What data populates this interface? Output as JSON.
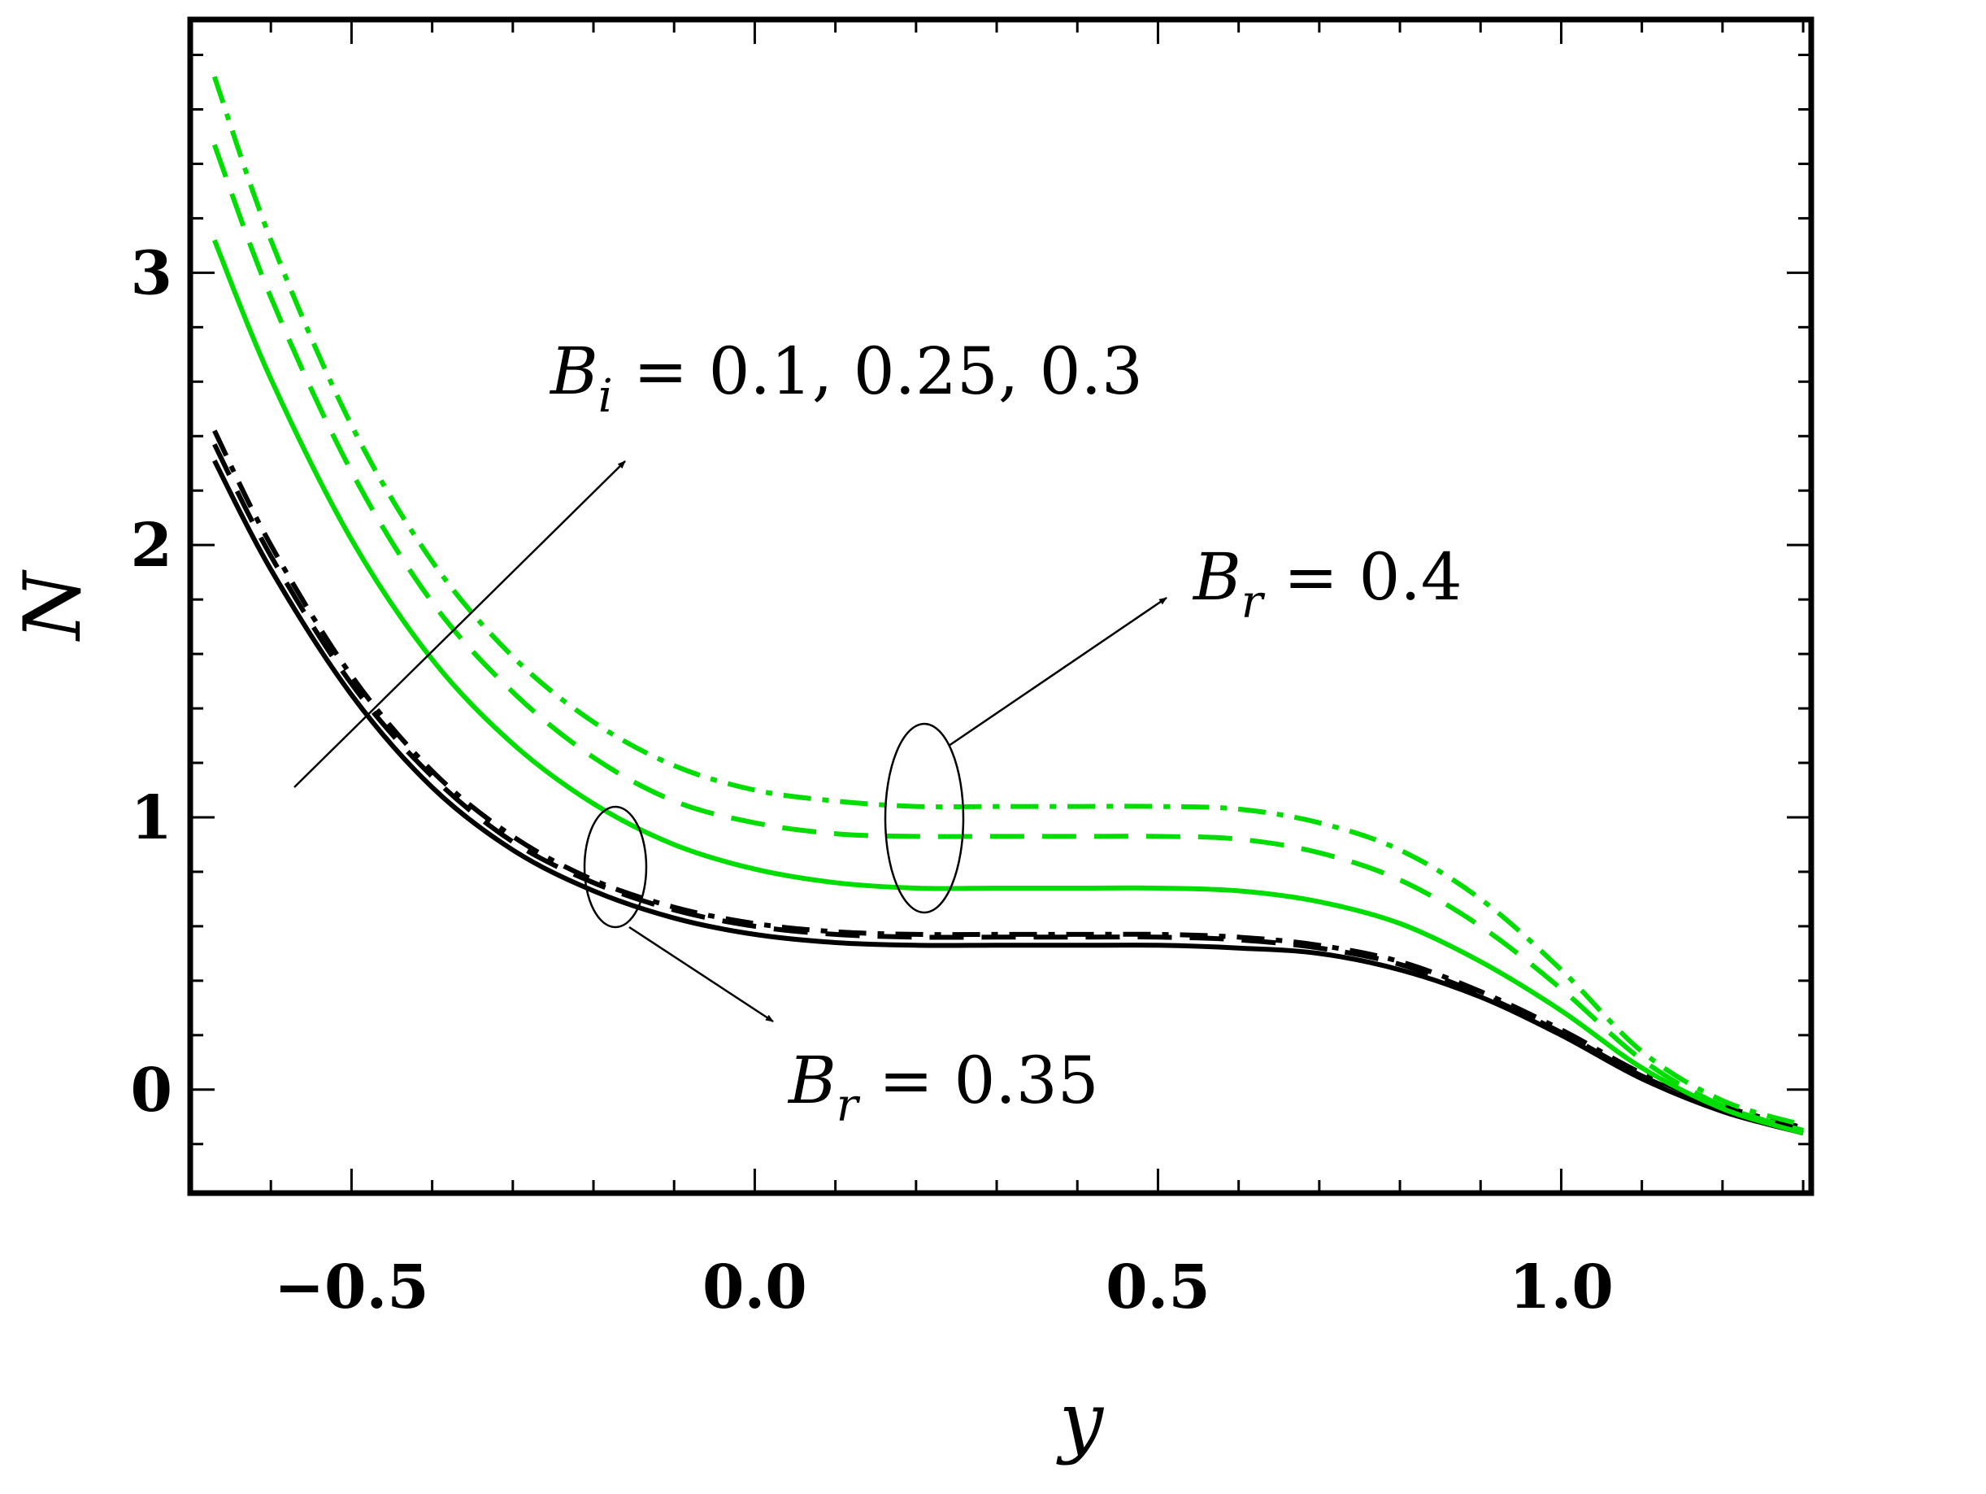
{
  "chart_data": {
    "type": "line",
    "title": "",
    "xlabel": "y",
    "ylabel": "N",
    "xlim": [
      -0.7,
      1.31
    ],
    "ylim": [
      -0.38,
      3.93
    ],
    "xticks": [
      -0.5,
      0.0,
      0.5,
      1.0
    ],
    "xtick_labels": [
      "−0.5",
      "0.0",
      "0.5",
      "1.0"
    ],
    "yticks": [
      0,
      1,
      2,
      3
    ],
    "ytick_labels": [
      "0",
      "1",
      "2",
      "3"
    ],
    "grid": false,
    "x": [
      -0.67,
      -0.6,
      -0.5,
      -0.4,
      -0.3,
      -0.2,
      -0.1,
      0.0,
      0.1,
      0.2,
      0.3,
      0.4,
      0.5,
      0.6,
      0.7,
      0.8,
      0.9,
      1.0,
      1.1,
      1.2,
      1.3
    ],
    "series": [
      {
        "name": "B_r = 0.35, B_i = 0.1",
        "color": "#000000",
        "dash": "solid",
        "values": [
          2.31,
          1.91,
          1.45,
          1.11,
          0.88,
          0.73,
          0.63,
          0.57,
          0.54,
          0.53,
          0.53,
          0.53,
          0.53,
          0.52,
          0.5,
          0.44,
          0.34,
          0.2,
          0.04,
          -0.08,
          -0.16
        ]
      },
      {
        "name": "B_r = 0.35, B_i = 0.25",
        "color": "#000000",
        "dash": "dashed",
        "values": [
          2.37,
          1.96,
          1.49,
          1.15,
          0.91,
          0.76,
          0.66,
          0.6,
          0.57,
          0.56,
          0.56,
          0.56,
          0.56,
          0.55,
          0.52,
          0.46,
          0.35,
          0.21,
          0.05,
          -0.07,
          -0.15
        ]
      },
      {
        "name": "B_r = 0.35, B_i = 0.3",
        "color": "#000000",
        "dash": "dotdash",
        "values": [
          2.42,
          2.0,
          1.52,
          1.17,
          0.93,
          0.77,
          0.67,
          0.61,
          0.58,
          0.57,
          0.57,
          0.57,
          0.57,
          0.56,
          0.53,
          0.47,
          0.36,
          0.22,
          0.06,
          -0.06,
          -0.14
        ]
      },
      {
        "name": "B_r = 0.4, B_i = 0.1",
        "color": "#00dd00",
        "dash": "solid",
        "values": [
          3.12,
          2.61,
          2.02,
          1.58,
          1.27,
          1.05,
          0.9,
          0.81,
          0.76,
          0.74,
          0.74,
          0.74,
          0.74,
          0.73,
          0.69,
          0.61,
          0.47,
          0.29,
          0.08,
          -0.07,
          -0.16
        ]
      },
      {
        "name": "B_r = 0.4, B_i = 0.25",
        "color": "#00dd00",
        "dash": "dashed",
        "values": [
          3.47,
          2.91,
          2.27,
          1.79,
          1.46,
          1.22,
          1.06,
          0.98,
          0.94,
          0.93,
          0.93,
          0.93,
          0.93,
          0.92,
          0.87,
          0.77,
          0.6,
          0.37,
          0.11,
          -0.06,
          -0.15
        ]
      },
      {
        "name": "B_r = 0.4, B_i = 0.3",
        "color": "#00dd00",
        "dash": "dotdash",
        "values": [
          3.72,
          3.12,
          2.44,
          1.94,
          1.59,
          1.35,
          1.19,
          1.1,
          1.06,
          1.04,
          1.04,
          1.04,
          1.04,
          1.03,
          0.98,
          0.88,
          0.7,
          0.44,
          0.14,
          -0.04,
          -0.13
        ]
      }
    ],
    "annotations": {
      "bi_label": {
        "text": "B",
        "sub": "i",
        "rest": " = 0.1, 0.25, 0.3"
      },
      "br_upper": {
        "text": "B",
        "sub": "r",
        "rest": " = 0.4"
      },
      "br_lower": {
        "text": "B",
        "sub": "r",
        "rest": " = 0.35"
      }
    }
  }
}
